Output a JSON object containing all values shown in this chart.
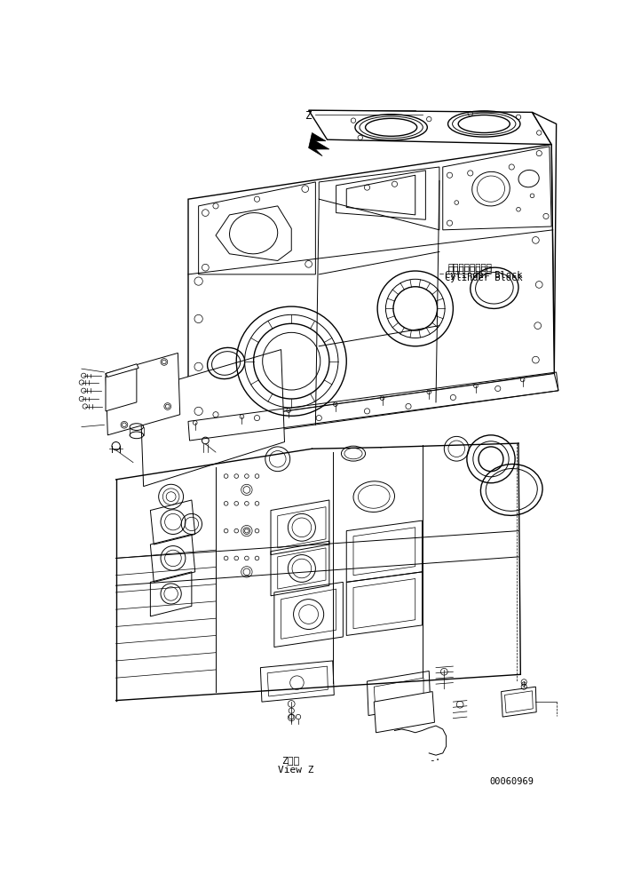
{
  "background_color": "#ffffff",
  "label_cylinder_block_jp": "シリンダブロック",
  "label_cylinder_block_en": "Cylinder Block",
  "label_view_jp": "Z　視",
  "label_view_en": "View Z",
  "label_part_number": "00060969",
  "line_color": "#000000",
  "text_color": "#000000",
  "dpi": 100
}
